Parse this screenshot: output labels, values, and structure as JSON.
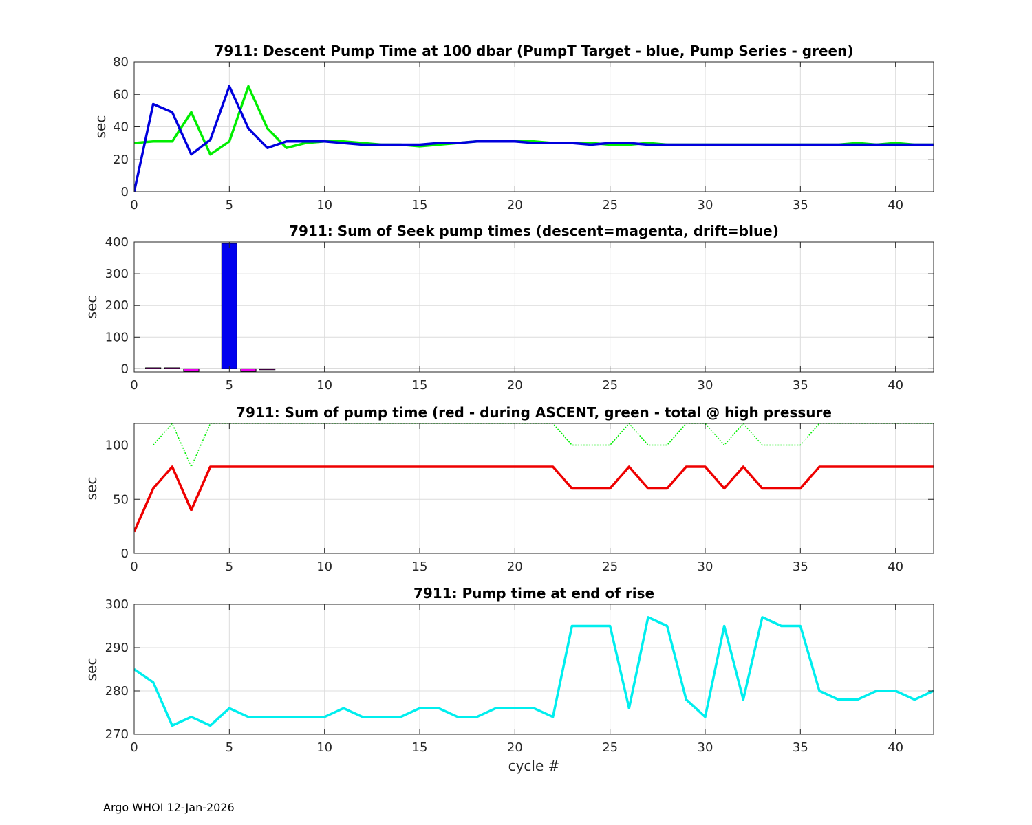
{
  "footer": "Argo WHOI 12-Jan-2026",
  "chart_data": [
    {
      "type": "line",
      "title": "7911: Descent Pump Time at 100 dbar (PumpT Target - blue, Pump Series - green)",
      "xlabel": "",
      "ylabel": "sec",
      "xlim": [
        0,
        42
      ],
      "ylim": [
        0,
        80
      ],
      "xticks": [
        0,
        5,
        10,
        15,
        20,
        25,
        30,
        35,
        40
      ],
      "yticks": [
        0,
        20,
        40,
        60,
        80
      ],
      "grid": true,
      "series": [
        {
          "color": "#00ee00",
          "style": "solid",
          "x": [
            0,
            1,
            2,
            3,
            4,
            5,
            6,
            7,
            8,
            9,
            10,
            11,
            12,
            13,
            14,
            15,
            16,
            17,
            18,
            19,
            20,
            21,
            22,
            23,
            24,
            25,
            26,
            27,
            28,
            29,
            30,
            31,
            32,
            33,
            34,
            35,
            36,
            37,
            38,
            39,
            40,
            41,
            42
          ],
          "y": [
            30,
            31,
            31,
            49,
            23,
            31,
            65,
            39,
            27,
            30,
            31,
            31,
            30,
            29,
            29,
            28,
            29,
            30,
            31,
            31,
            31,
            31,
            30,
            30,
            30,
            29,
            29,
            30,
            29,
            29,
            29,
            29,
            29,
            29,
            29,
            29,
            29,
            29,
            30,
            29,
            30,
            29,
            29
          ]
        },
        {
          "color": "#0000dd",
          "style": "solid",
          "x": [
            0,
            1,
            2,
            3,
            4,
            5,
            6,
            7,
            8,
            9,
            10,
            11,
            12,
            13,
            14,
            15,
            16,
            17,
            18,
            19,
            20,
            21,
            22,
            23,
            24,
            25,
            26,
            27,
            28,
            29,
            30,
            31,
            32,
            33,
            34,
            35,
            36,
            37,
            38,
            39,
            40,
            41,
            42
          ],
          "y": [
            0,
            54,
            49,
            23,
            32,
            65,
            39,
            27,
            31,
            31,
            31,
            30,
            29,
            29,
            29,
            29,
            30,
            30,
            31,
            31,
            31,
            30,
            30,
            30,
            29,
            30,
            30,
            29,
            29,
            29,
            29,
            29,
            29,
            29,
            29,
            29,
            29,
            29,
            29,
            29,
            29,
            29,
            29
          ]
        }
      ]
    },
    {
      "type": "bar",
      "title": "7911: Sum of Seek pump times (descent=magenta, drift=blue)",
      "xlabel": "",
      "ylabel": "sec",
      "xlim": [
        0,
        42
      ],
      "ylim": [
        -10,
        400
      ],
      "xticks": [
        0,
        5,
        10,
        15,
        20,
        25,
        30,
        35,
        40
      ],
      "yticks": [
        0,
        100,
        200,
        300,
        400
      ],
      "grid": true,
      "bar_width": 0.8,
      "series": [
        {
          "name": "",
          "color": "#ee00ee",
          "x": [
            1,
            2,
            3,
            6,
            7
          ],
          "values": [
            3,
            3,
            -8,
            -8,
            -3
          ]
        },
        {
          "name": "",
          "color": "#0000ee",
          "x": [
            5
          ],
          "values": [
            396
          ]
        }
      ]
    },
    {
      "type": "line",
      "title": "7911: Sum of pump time (red - during ASCENT, green - total @ high pressure",
      "xlabel": "",
      "ylabel": "sec",
      "xlim": [
        0,
        42
      ],
      "ylim": [
        0,
        120
      ],
      "xticks": [
        0,
        5,
        10,
        15,
        20,
        25,
        30,
        35,
        40
      ],
      "yticks": [
        0,
        50,
        100
      ],
      "grid": true,
      "series": [
        {
          "color": "#00ee00",
          "style": "dotted",
          "x": [
            1,
            2,
            3,
            4,
            5,
            6,
            7,
            8,
            9,
            10,
            11,
            12,
            13,
            14,
            15,
            16,
            17,
            18,
            19,
            20,
            21,
            22,
            23,
            24,
            25,
            26,
            27,
            28,
            29,
            30,
            31,
            32,
            33,
            34,
            35,
            36,
            37,
            38,
            39,
            40,
            41,
            42
          ],
          "y": [
            100,
            120,
            80,
            120,
            120,
            120,
            120,
            120,
            120,
            120,
            120,
            120,
            120,
            120,
            120,
            120,
            120,
            120,
            120,
            120,
            120,
            120,
            100,
            100,
            100,
            120,
            100,
            100,
            120,
            120,
            100,
            120,
            100,
            100,
            100,
            120,
            120,
            120,
            120,
            120,
            120,
            120
          ]
        },
        {
          "color": "#ee0000",
          "style": "solid",
          "x": [
            0,
            1,
            2,
            3,
            4,
            5,
            6,
            7,
            8,
            9,
            10,
            11,
            12,
            13,
            14,
            15,
            16,
            17,
            18,
            19,
            20,
            21,
            22,
            23,
            24,
            25,
            26,
            27,
            28,
            29,
            30,
            31,
            32,
            33,
            34,
            35,
            36,
            37,
            38,
            39,
            40,
            41,
            42
          ],
          "y": [
            20,
            60,
            80,
            40,
            80,
            80,
            80,
            80,
            80,
            80,
            80,
            80,
            80,
            80,
            80,
            80,
            80,
            80,
            80,
            80,
            80,
            80,
            80,
            60,
            60,
            60,
            80,
            60,
            60,
            80,
            80,
            60,
            80,
            60,
            60,
            60,
            80,
            80,
            80,
            80,
            80,
            80,
            80
          ]
        }
      ]
    },
    {
      "type": "line",
      "title": "7911: Pump time at end of rise",
      "xlabel": "cycle #",
      "ylabel": "sec",
      "xlim": [
        0,
        42
      ],
      "ylim": [
        270,
        300
      ],
      "xticks": [
        0,
        5,
        10,
        15,
        20,
        25,
        30,
        35,
        40
      ],
      "yticks": [
        270,
        280,
        290,
        300
      ],
      "grid": true,
      "series": [
        {
          "color": "#00eeee",
          "style": "solid",
          "x": [
            0,
            1,
            2,
            3,
            4,
            5,
            6,
            7,
            8,
            9,
            10,
            11,
            12,
            13,
            14,
            15,
            16,
            17,
            18,
            19,
            20,
            21,
            22,
            23,
            24,
            25,
            26,
            27,
            28,
            29,
            30,
            31,
            32,
            33,
            34,
            35,
            36,
            37,
            38,
            39,
            40,
            41,
            42
          ],
          "y": [
            285,
            282,
            272,
            274,
            272,
            276,
            274,
            274,
            274,
            274,
            274,
            276,
            274,
            274,
            274,
            276,
            276,
            274,
            274,
            276,
            276,
            276,
            274,
            295,
            295,
            295,
            276,
            297,
            295,
            278,
            274,
            295,
            278,
            297,
            295,
            295,
            280,
            278,
            278,
            280,
            280,
            278,
            280
          ]
        }
      ]
    }
  ]
}
